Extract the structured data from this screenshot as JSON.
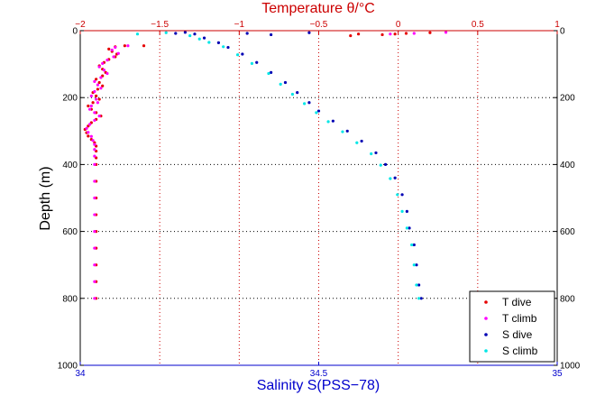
{
  "chart_data": {
    "type": "scatter",
    "title": "Temperature θ/°C",
    "xlabel": "Salinity S(PSS−78)",
    "ylabel": "Depth (m)",
    "x_bottom": {
      "range": [
        34,
        35
      ],
      "ticks": [
        34,
        34.5,
        35
      ],
      "tick_labels": [
        "34",
        "34.5",
        "35"
      ],
      "color": "#0000cc"
    },
    "x_top": {
      "range": [
        -2,
        1
      ],
      "ticks": [
        -2,
        -1.5,
        -1,
        -0.5,
        0,
        0.5,
        1
      ],
      "tick_labels": [
        "−2",
        "−1.5",
        "−1",
        "−0.5",
        "0",
        "0.5",
        "1"
      ],
      "color": "#cc0000"
    },
    "y": {
      "range": [
        0,
        1000
      ],
      "reversed": true,
      "ticks": [
        0,
        200,
        400,
        600,
        800,
        1000
      ],
      "tick_labels": [
        "0",
        "200",
        "400",
        "600",
        "800",
        "1000"
      ]
    },
    "grid": {
      "vertical": "top-axis ticks, red dotted",
      "horizontal": "depth ticks, black dotted"
    },
    "legend": {
      "position": "bottom-right"
    },
    "series": [
      {
        "name": "T dive",
        "axis": "top",
        "color": "#e60000",
        "points": [
          [
            -1.72,
            45
          ],
          [
            -1.6,
            45
          ],
          [
            -1.78,
            48
          ],
          [
            -1.82,
            55
          ],
          [
            -1.8,
            62
          ],
          [
            -1.77,
            70
          ],
          [
            -1.78,
            78
          ],
          [
            -1.82,
            86
          ],
          [
            -1.85,
            95
          ],
          [
            -1.88,
            105
          ],
          [
            -1.86,
            115
          ],
          [
            -1.84,
            125
          ],
          [
            -1.86,
            135
          ],
          [
            -1.9,
            145
          ],
          [
            -1.88,
            155
          ],
          [
            -1.86,
            165
          ],
          [
            -1.89,
            175
          ],
          [
            -1.92,
            185
          ],
          [
            -1.9,
            195
          ],
          [
            -1.88,
            205
          ],
          [
            -1.92,
            215
          ],
          [
            -1.95,
            225
          ],
          [
            -1.93,
            235
          ],
          [
            -1.9,
            245
          ],
          [
            -1.87,
            255
          ],
          [
            -1.9,
            265
          ],
          [
            -1.93,
            275
          ],
          [
            -1.95,
            285
          ],
          [
            -1.97,
            295
          ],
          [
            -1.96,
            305
          ],
          [
            -1.95,
            315
          ],
          [
            -1.93,
            325
          ],
          [
            -1.91,
            335
          ],
          [
            -1.9,
            345
          ],
          [
            -1.9,
            360
          ],
          [
            -1.9,
            380
          ],
          [
            -1.9,
            400
          ],
          [
            -1.9,
            450
          ],
          [
            -1.9,
            500
          ],
          [
            -1.9,
            550
          ],
          [
            -1.9,
            600
          ],
          [
            -1.9,
            650
          ],
          [
            -1.9,
            700
          ],
          [
            -1.9,
            750
          ],
          [
            -1.9,
            800
          ],
          [
            -0.25,
            10
          ],
          [
            -0.1,
            12
          ],
          [
            0.05,
            8
          ],
          [
            0.2,
            6
          ],
          [
            -0.3,
            15
          ],
          [
            -0.02,
            10
          ]
        ]
      },
      {
        "name": "T climb",
        "axis": "top",
        "color": "#ff00ff",
        "points": [
          [
            -1.7,
            45
          ],
          [
            -1.78,
            50
          ],
          [
            -1.8,
            58
          ],
          [
            -1.76,
            68
          ],
          [
            -1.79,
            78
          ],
          [
            -1.83,
            88
          ],
          [
            -1.86,
            98
          ],
          [
            -1.88,
            108
          ],
          [
            -1.85,
            118
          ],
          [
            -1.83,
            128
          ],
          [
            -1.87,
            140
          ],
          [
            -1.91,
            152
          ],
          [
            -1.89,
            162
          ],
          [
            -1.87,
            172
          ],
          [
            -1.91,
            182
          ],
          [
            -1.93,
            195
          ],
          [
            -1.9,
            205
          ],
          [
            -1.89,
            215
          ],
          [
            -1.93,
            225
          ],
          [
            -1.94,
            235
          ],
          [
            -1.91,
            245
          ],
          [
            -1.88,
            255
          ],
          [
            -1.91,
            268
          ],
          [
            -1.94,
            280
          ],
          [
            -1.96,
            292
          ],
          [
            -1.95,
            304
          ],
          [
            -1.93,
            316
          ],
          [
            -1.92,
            328
          ],
          [
            -1.91,
            340
          ],
          [
            -1.91,
            355
          ],
          [
            -1.91,
            375
          ],
          [
            -1.91,
            400
          ],
          [
            -1.91,
            450
          ],
          [
            -1.91,
            500
          ],
          [
            -1.91,
            550
          ],
          [
            -1.91,
            600
          ],
          [
            -1.91,
            650
          ],
          [
            -1.91,
            700
          ],
          [
            -1.91,
            750
          ],
          [
            -1.91,
            800
          ],
          [
            -0.05,
            10
          ],
          [
            0.1,
            8
          ],
          [
            0.3,
            5
          ]
        ]
      },
      {
        "name": "S dive",
        "axis": "bottom",
        "color": "#0000b4",
        "points": [
          [
            34.2,
            8
          ],
          [
            34.22,
            5
          ],
          [
            34.24,
            10
          ],
          [
            34.26,
            22
          ],
          [
            34.29,
            36
          ],
          [
            34.31,
            50
          ],
          [
            34.34,
            70
          ],
          [
            34.37,
            95
          ],
          [
            34.4,
            125
          ],
          [
            34.43,
            155
          ],
          [
            34.455,
            185
          ],
          [
            34.48,
            215
          ],
          [
            34.5,
            240
          ],
          [
            34.53,
            270
          ],
          [
            34.56,
            300
          ],
          [
            34.59,
            330
          ],
          [
            34.62,
            365
          ],
          [
            34.64,
            400
          ],
          [
            34.66,
            440
          ],
          [
            34.675,
            490
          ],
          [
            34.685,
            540
          ],
          [
            34.69,
            590
          ],
          [
            34.7,
            640
          ],
          [
            34.705,
            700
          ],
          [
            34.71,
            760
          ],
          [
            34.715,
            800
          ],
          [
            34.35,
            8
          ],
          [
            34.4,
            12
          ],
          [
            34.48,
            6
          ]
        ]
      },
      {
        "name": "S climb",
        "axis": "bottom",
        "color": "#00e6e6",
        "points": [
          [
            34.12,
            10
          ],
          [
            34.18,
            6
          ],
          [
            34.23,
            15
          ],
          [
            34.25,
            25
          ],
          [
            34.27,
            35
          ],
          [
            34.3,
            48
          ],
          [
            34.33,
            72
          ],
          [
            34.36,
            98
          ],
          [
            34.395,
            128
          ],
          [
            34.42,
            160
          ],
          [
            34.445,
            190
          ],
          [
            34.47,
            218
          ],
          [
            34.495,
            245
          ],
          [
            34.52,
            272
          ],
          [
            34.55,
            302
          ],
          [
            34.58,
            335
          ],
          [
            34.61,
            368
          ],
          [
            34.63,
            402
          ],
          [
            34.65,
            442
          ],
          [
            34.665,
            490
          ],
          [
            34.675,
            540
          ],
          [
            34.685,
            590
          ],
          [
            34.695,
            640
          ],
          [
            34.7,
            700
          ],
          [
            34.705,
            760
          ],
          [
            34.71,
            800
          ]
        ]
      }
    ]
  }
}
